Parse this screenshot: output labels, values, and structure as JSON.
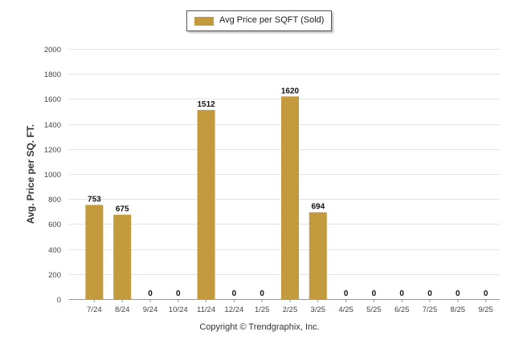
{
  "chart_data": {
    "type": "bar",
    "categories": [
      "7/24",
      "8/24",
      "9/24",
      "10/24",
      "11/24",
      "12/24",
      "1/25",
      "2/25",
      "3/25",
      "4/25",
      "5/25",
      "6/25",
      "7/25",
      "8/25",
      "9/25"
    ],
    "series": [
      {
        "name": "Avg Price per SQFT (Sold)",
        "values": [
          753,
          675,
          0,
          0,
          1512,
          0,
          0,
          1620,
          694,
          0,
          0,
          0,
          0,
          0,
          0
        ]
      }
    ],
    "data_labels": [
      "753",
      "675",
      "0",
      "0",
      "1512",
      "0",
      "0",
      "1620",
      "694",
      "0",
      "0",
      "0",
      "0",
      "0",
      "0"
    ],
    "ylabel": "Avg. Price per SQ. FT.",
    "xlabel": "",
    "ylim": [
      0,
      2000
    ],
    "yticks": [
      0,
      200,
      400,
      600,
      800,
      1000,
      1200,
      1400,
      1600,
      1800,
      2000
    ],
    "grid": true,
    "legend_position": "top-center",
    "bar_color": "#C49A3E"
  },
  "legend": {
    "label": "Avg Price per SQFT (Sold)"
  },
  "footer": {
    "text": "Copyright © Trendgraphix, Inc."
  }
}
